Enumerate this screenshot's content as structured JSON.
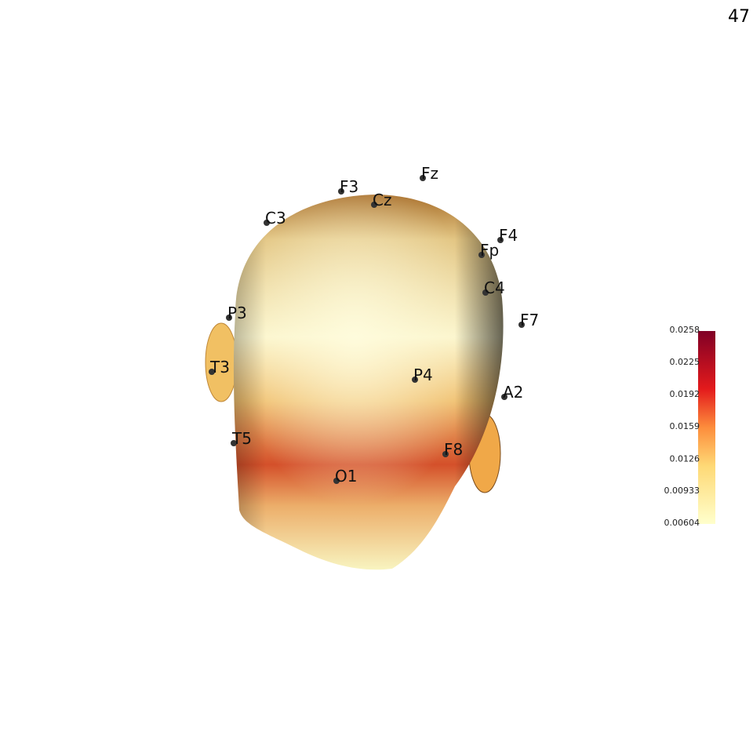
{
  "frame": "47",
  "electrodes": [
    "Fz",
    "F3",
    "Cz",
    "C3",
    "F4",
    "Fp",
    "C4",
    "F7",
    "P3",
    "T3",
    "P4",
    "A2",
    "T5",
    "F8",
    "O1"
  ],
  "colorbar": {
    "ticks": [
      0.0258,
      0.0225,
      0.0192,
      0.0159,
      0.0126,
      0.00933,
      0.00604
    ]
  }
}
